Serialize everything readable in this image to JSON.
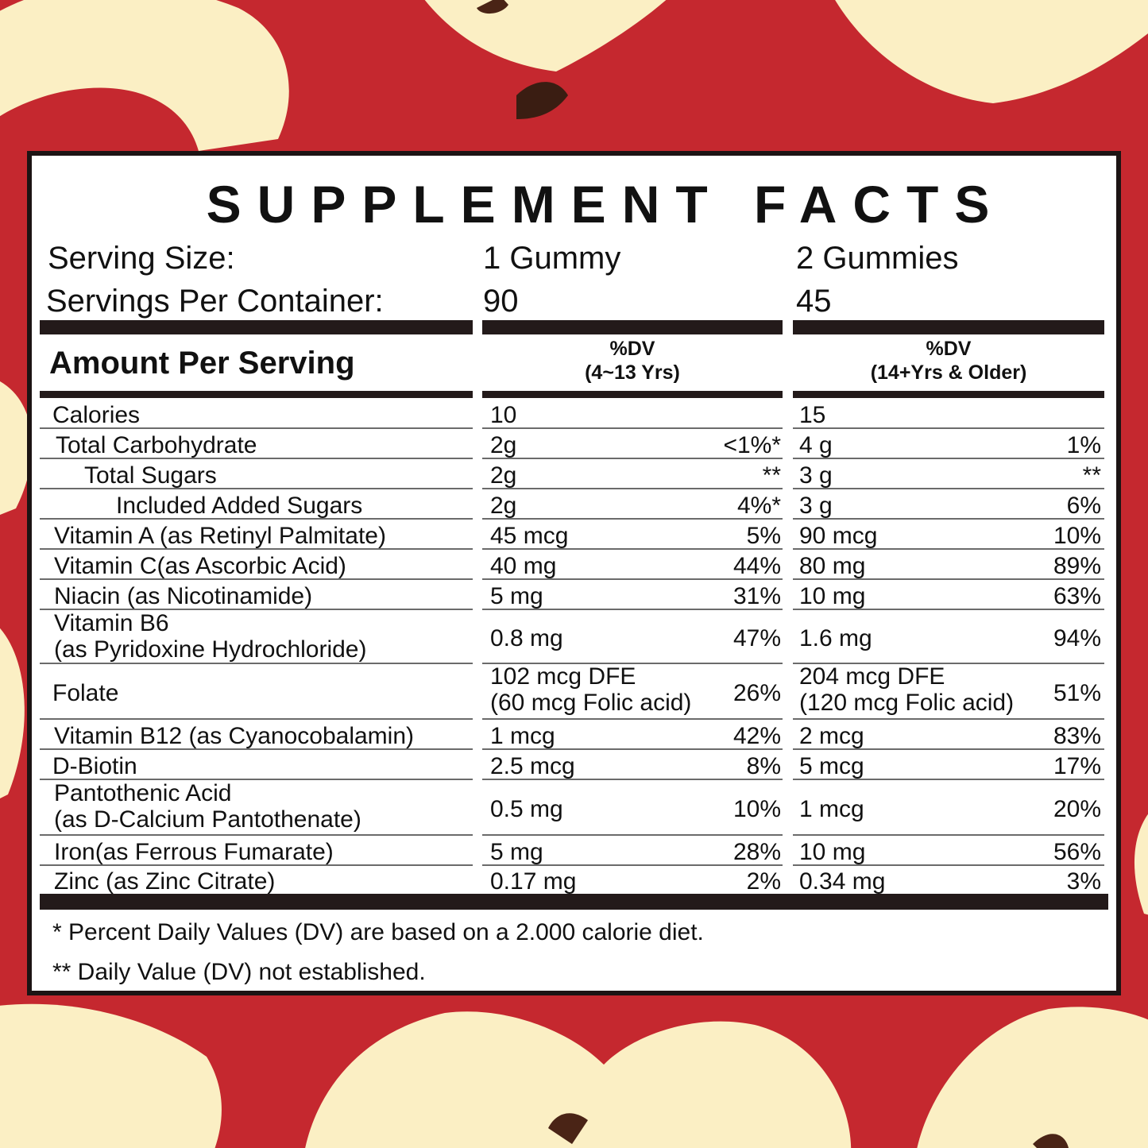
{
  "colors": {
    "background": "#c5282f",
    "apple_flesh": "#fbefc4",
    "panel": "#ffffff",
    "rule": "#231a1a"
  },
  "title": "SUPPLEMENT FACTS",
  "serving": {
    "size_label": "Serving Size:",
    "size_child": "1 Gummy",
    "size_adult": "2 Gummies",
    "per_container_label": "Servings Per Container:",
    "per_container_child": "90",
    "per_container_adult": "45"
  },
  "header": {
    "amount_label": "Amount Per Serving",
    "child_dv_line1": "%DV",
    "child_dv_line2": "(4~13 Yrs)",
    "adult_dv_line1": "%DV",
    "adult_dv_line2": "(14+Yrs & Older)"
  },
  "nutrients": [
    {
      "name": "Calories",
      "name2": "",
      "child_amount": "10",
      "child_amount2": "",
      "child_dv": "",
      "adult_amount": "15",
      "adult_amount2": "",
      "adult_dv": ""
    },
    {
      "name": "Total Carbohydrate",
      "name2": "",
      "child_amount": "2g",
      "child_amount2": "",
      "child_dv": "<1%*",
      "adult_amount": "4 g",
      "adult_amount2": "",
      "adult_dv": "1%"
    },
    {
      "name": "Total Sugars",
      "name2": "",
      "child_amount": "2g",
      "child_amount2": "",
      "child_dv": "**",
      "adult_amount": "3 g",
      "adult_amount2": "",
      "adult_dv": "**"
    },
    {
      "name": "Included Added Sugars",
      "name2": "",
      "child_amount": "2g",
      "child_amount2": "",
      "child_dv": "4%*",
      "adult_amount": "3 g",
      "adult_amount2": "",
      "adult_dv": "6%"
    },
    {
      "name": "Vitamin A (as Retinyl Palmitate)",
      "name2": "",
      "child_amount": "45 mcg",
      "child_amount2": "",
      "child_dv": "5%",
      "adult_amount": "90 mcg",
      "adult_amount2": "",
      "adult_dv": "10%"
    },
    {
      "name": "Vitamin C(as Ascorbic Acid)",
      "name2": "",
      "child_amount": "40 mg",
      "child_amount2": "",
      "child_dv": "44%",
      "adult_amount": "80 mg",
      "adult_amount2": "",
      "adult_dv": "89%"
    },
    {
      "name": "Niacin (as Nicotinamide)",
      "name2": "",
      "child_amount": "5 mg",
      "child_amount2": "",
      "child_dv": "31%",
      "adult_amount": "10 mg",
      "adult_amount2": "",
      "adult_dv": "63%"
    },
    {
      "name": "Vitamin B6",
      "name2": "(as Pyridoxine Hydrochloride)",
      "child_amount": "0.8 mg",
      "child_amount2": "",
      "child_dv": "47%",
      "adult_amount": "1.6 mg",
      "adult_amount2": "",
      "adult_dv": "94%"
    },
    {
      "name": "Folate",
      "name2": "",
      "child_amount": "102 mcg DFE",
      "child_amount2": "(60 mcg Folic acid)",
      "child_dv": "26%",
      "adult_amount": "204 mcg DFE",
      "adult_amount2": "(120 mcg Folic acid)",
      "adult_dv": "51%"
    },
    {
      "name": "Vitamin B12 (as Cyanocobalamin)",
      "name2": "",
      "child_amount": "1 mcg",
      "child_amount2": "",
      "child_dv": "42%",
      "adult_amount": "2 mcg",
      "adult_amount2": "",
      "adult_dv": "83%"
    },
    {
      "name": "D-Biotin",
      "name2": "",
      "child_amount": "2.5 mcg",
      "child_amount2": "",
      "child_dv": "8%",
      "adult_amount": "5 mcg",
      "adult_amount2": "",
      "adult_dv": "17%"
    },
    {
      "name": "Pantothenic Acid",
      "name2": "(as D-Calcium Pantothenate)",
      "child_amount": "0.5 mg",
      "child_amount2": "",
      "child_dv": "10%",
      "adult_amount": "1 mcg",
      "adult_amount2": "",
      "adult_dv": "20%"
    },
    {
      "name": "Iron(as Ferrous Fumarate)",
      "name2": "",
      "child_amount": "5 mg",
      "child_amount2": "",
      "child_dv": "28%",
      "adult_amount": "10 mg",
      "adult_amount2": "",
      "adult_dv": "56%"
    },
    {
      "name": "Zinc (as Zinc Citrate)",
      "name2": "",
      "child_amount": "0.17 mg",
      "child_amount2": "",
      "child_dv": "2%",
      "adult_amount": "0.34 mg",
      "adult_amount2": "",
      "adult_dv": "3%"
    }
  ],
  "footnotes": [
    "* Percent Daily Values (DV) are based on a 2.000 calorie diet.",
    "** Daily Value (DV) not established."
  ]
}
